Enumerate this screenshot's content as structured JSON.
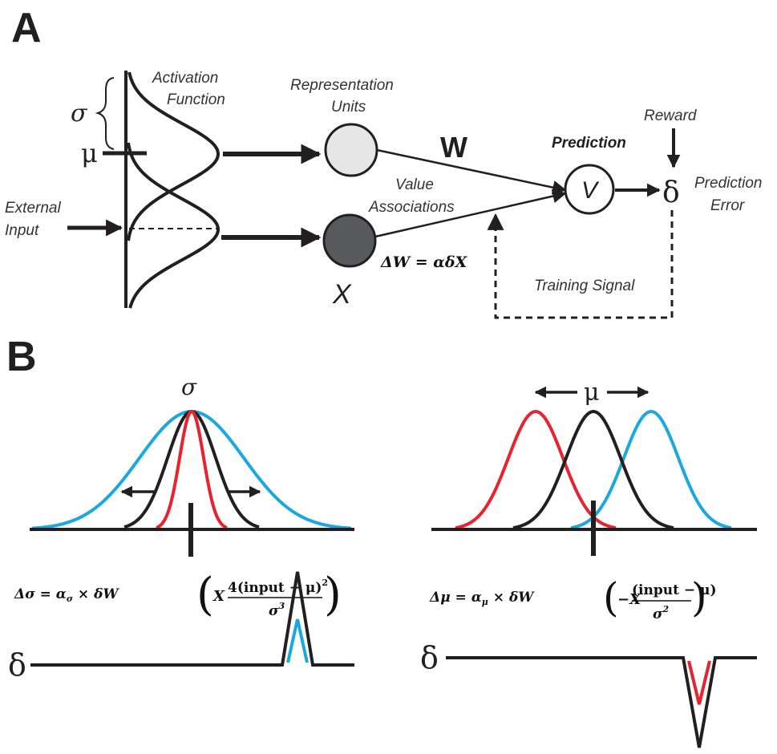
{
  "panel_a": {
    "letter": "A",
    "activation_function": [
      "Activation",
      "Function"
    ],
    "sigma": "σ",
    "mu": "μ",
    "external_input": [
      "External",
      "Input"
    ],
    "representation_units": [
      "Representation",
      "Units"
    ],
    "x_label": "X",
    "w_label": "W",
    "value_associations": [
      "Value",
      "Associations"
    ],
    "weight_update": "ΔW = αδX",
    "prediction": "Prediction",
    "v_label": "V",
    "reward": "Reward",
    "delta": "δ",
    "prediction_error": [
      "Prediction",
      "Error"
    ],
    "training_signal": "Training Signal"
  },
  "panel_b": {
    "letter": "B",
    "sigma_title": "σ",
    "mu_title": "μ",
    "sigma_equation": {
      "lhs": "Δσ = α",
      "lhs_sub": "σ",
      "mid": " × δW",
      "x": "X",
      "numerator": "4(input − μ)",
      "num_sup": "2",
      "denominator": "σ",
      "den_sup": "3"
    },
    "mu_equation": {
      "lhs": "Δμ = α",
      "lhs_sub": "μ",
      "mid": " × δW",
      "x": "−X",
      "numerator": "(input − μ)",
      "denominator": "σ",
      "den_sup": "2"
    },
    "delta_left": "δ",
    "delta_right": "δ"
  },
  "colors": {
    "ink": "#231f20",
    "light_unit": "#e6e6e6",
    "dark_unit": "#58595b",
    "red": "#e8222e",
    "blue": "#1ba8e0",
    "paren_right_mu": "#8b6b66"
  }
}
